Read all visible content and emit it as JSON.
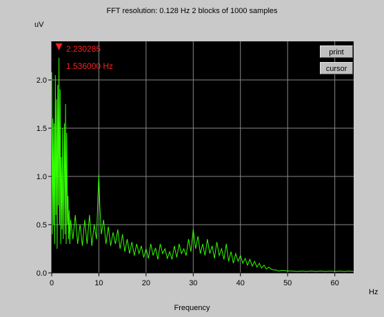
{
  "header": {
    "title": "FFT resolution: 0.128 Hz   2 blocks of 1000 samples"
  },
  "cursor": {
    "value_label": "2.230285",
    "freq_label": "1.536000 Hz",
    "freq": 1.536,
    "value": 2.230285
  },
  "buttons": {
    "print": "print",
    "cursor": "cursor"
  },
  "colors": {
    "background": "#c9c9c9",
    "plot_bg": "#000000",
    "grid": "#8a8a8a",
    "trace": "#33ff00",
    "cursor": "#ff2020"
  },
  "chart_data": {
    "type": "line",
    "title": "FFT resolution: 0.128 Hz   2 blocks of 1000 samples",
    "xlabel": "Frequency",
    "xunit": "Hz",
    "ylabel": "uV",
    "xlim": [
      0,
      64
    ],
    "ylim": [
      0,
      2.4
    ],
    "xticks": [
      0,
      10,
      20,
      30,
      40,
      50,
      60
    ],
    "yticks": [
      0.0,
      0.5,
      1.0,
      1.5,
      2.0
    ],
    "ytick_labels": [
      "0.0",
      "0.5",
      "1.0",
      "1.5",
      "2.0"
    ],
    "grid": true,
    "series": [
      {
        "x": [
          0,
          0.128,
          0.256,
          0.384,
          0.512,
          0.64,
          0.768,
          0.896,
          1.024,
          1.152,
          1.28,
          1.408,
          1.536,
          1.664,
          1.792,
          1.92,
          2.048,
          2.176,
          2.304,
          2.432,
          2.56,
          2.688,
          2.816,
          2.944,
          3.072,
          3.2,
          3.328,
          3.456,
          3.584,
          3.712,
          3.84,
          4.0,
          4.5,
          5.0,
          5.5,
          6.0,
          6.5,
          7.0,
          7.5,
          8.0,
          8.5,
          9.0,
          9.5,
          9.8,
          10.0,
          10.2,
          10.5,
          11.0,
          11.5,
          12.0,
          12.5,
          13.0,
          13.5,
          14.0,
          14.5,
          15.0,
          15.5,
          16.0,
          16.5,
          17.0,
          17.5,
          18.0,
          18.5,
          19.0,
          19.5,
          20.0,
          20.5,
          21.0,
          21.5,
          22.0,
          22.5,
          23.0,
          23.5,
          24.0,
          24.5,
          25.0,
          25.5,
          26.0,
          26.5,
          27.0,
          27.5,
          28.0,
          28.5,
          29.0,
          29.5,
          30.0,
          30.5,
          31.0,
          31.5,
          32.0,
          32.5,
          33.0,
          33.5,
          34.0,
          34.5,
          35.0,
          35.5,
          36.0,
          36.5,
          37.0,
          37.5,
          38.0,
          38.5,
          39.0,
          39.5,
          40.0,
          40.5,
          41.0,
          41.5,
          42.0,
          42.5,
          43.0,
          43.5,
          44.0,
          44.5,
          45.0,
          45.5,
          46.0,
          46.5,
          47.0,
          47.5,
          48.0,
          49.0,
          50.0,
          51.0,
          52.0,
          53.0,
          54.0,
          55.0,
          56.0,
          57.0,
          58.0,
          59.0,
          60.0,
          61.0,
          62.0,
          63.0,
          64.0
        ],
        "y": [
          2.08,
          0.4,
          1.6,
          0.5,
          1.55,
          0.3,
          2.05,
          0.6,
          1.8,
          0.25,
          1.95,
          0.7,
          2.23,
          0.5,
          1.9,
          0.3,
          1.2,
          0.45,
          1.5,
          0.35,
          0.9,
          1.55,
          0.4,
          1.75,
          0.3,
          1.45,
          0.5,
          0.8,
          0.35,
          0.65,
          0.3,
          0.55,
          0.35,
          0.6,
          0.3,
          0.5,
          0.28,
          0.55,
          0.3,
          0.6,
          0.28,
          0.5,
          0.35,
          0.8,
          1.02,
          0.7,
          0.4,
          0.55,
          0.3,
          0.48,
          0.28,
          0.42,
          0.3,
          0.45,
          0.25,
          0.4,
          0.22,
          0.35,
          0.2,
          0.32,
          0.18,
          0.3,
          0.2,
          0.28,
          0.16,
          0.25,
          0.15,
          0.3,
          0.18,
          0.26,
          0.14,
          0.3,
          0.2,
          0.25,
          0.15,
          0.22,
          0.14,
          0.28,
          0.16,
          0.3,
          0.2,
          0.25,
          0.18,
          0.35,
          0.22,
          0.45,
          0.25,
          0.38,
          0.2,
          0.3,
          0.18,
          0.35,
          0.2,
          0.28,
          0.15,
          0.32,
          0.18,
          0.25,
          0.14,
          0.3,
          0.12,
          0.22,
          0.1,
          0.2,
          0.12,
          0.18,
          0.1,
          0.15,
          0.08,
          0.14,
          0.07,
          0.12,
          0.06,
          0.1,
          0.05,
          0.08,
          0.04,
          0.06,
          0.04,
          0.03,
          0.03,
          0.02,
          0.025,
          0.02,
          0.02,
          0.015,
          0.02,
          0.015,
          0.02,
          0.015,
          0.02,
          0.015,
          0.02,
          0.015,
          0.02,
          0.015,
          0.02,
          0.015
        ]
      }
    ]
  }
}
